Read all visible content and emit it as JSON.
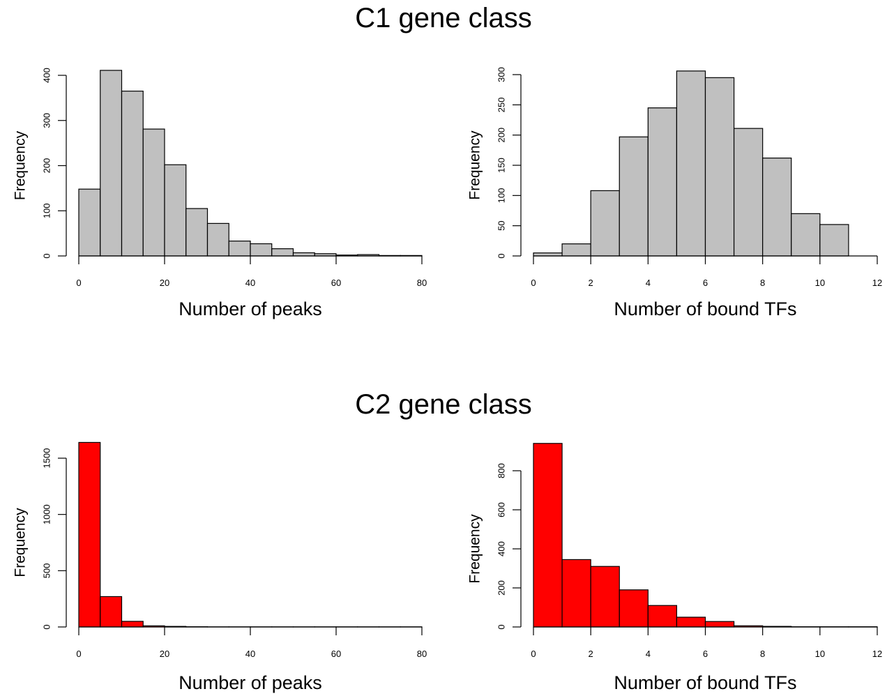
{
  "sections": [
    {
      "title": "C1 gene class"
    },
    {
      "title": "C2 gene class"
    }
  ],
  "colors": {
    "c1_fill": "#c0c0c0",
    "c2_fill": "#ff0000",
    "stroke": "#000000"
  },
  "chart_data": [
    {
      "type": "bar",
      "title": "",
      "xlabel": "Number of peaks",
      "ylabel": "Frequency",
      "bin_edges": [
        0,
        5,
        10,
        15,
        20,
        25,
        30,
        35,
        40,
        45,
        50,
        55,
        60,
        65,
        70,
        75,
        80
      ],
      "values": [
        148,
        411,
        365,
        281,
        202,
        105,
        72,
        33,
        27,
        16,
        7,
        5,
        2,
        3,
        1,
        1
      ],
      "xlim": [
        0,
        80
      ],
      "xticks": [
        0,
        20,
        40,
        60,
        80
      ],
      "ylim": [
        0,
        400
      ],
      "yticks": [
        0,
        100,
        200,
        300,
        400
      ],
      "fill": "#c0c0c0"
    },
    {
      "type": "bar",
      "title": "",
      "xlabel": "Number of bound TFs",
      "ylabel": "Frequency",
      "bin_edges": [
        0,
        1,
        2,
        3,
        4,
        5,
        6,
        7,
        8,
        9,
        10,
        11,
        12
      ],
      "values": [
        5,
        20,
        108,
        197,
        245,
        306,
        295,
        211,
        162,
        70,
        52,
        0
      ],
      "xlim": [
        0,
        12
      ],
      "xticks": [
        0,
        2,
        4,
        6,
        8,
        10,
        12
      ],
      "ylim": [
        0,
        300
      ],
      "yticks": [
        0,
        50,
        100,
        150,
        200,
        250,
        300
      ],
      "fill": "#c0c0c0"
    },
    {
      "type": "bar",
      "title": "",
      "xlabel": "Number of peaks",
      "ylabel": "Frequency",
      "bin_edges": [
        0,
        5,
        10,
        15,
        20,
        25,
        30,
        35,
        40,
        45,
        50,
        55,
        60,
        65,
        70,
        75,
        80
      ],
      "values": [
        1640,
        270,
        50,
        10,
        5,
        2,
        1,
        1,
        1,
        1,
        1,
        1,
        1,
        1,
        1,
        1
      ],
      "xlim": [
        0,
        80
      ],
      "xticks": [
        0,
        20,
        40,
        60,
        80
      ],
      "ylim": [
        0,
        1500
      ],
      "yticks": [
        0,
        500,
        1000,
        1500
      ],
      "fill": "#ff0000"
    },
    {
      "type": "bar",
      "title": "",
      "xlabel": "Number of bound TFs",
      "ylabel": "Frequency",
      "bin_edges": [
        0,
        1,
        2,
        3,
        4,
        5,
        6,
        7,
        8,
        9,
        10,
        11,
        12
      ],
      "values": [
        940,
        345,
        310,
        190,
        110,
        50,
        28,
        6,
        3,
        1,
        1,
        1
      ],
      "xlim": [
        0,
        12
      ],
      "xticks": [
        0,
        2,
        4,
        6,
        8,
        10,
        12
      ],
      "ylim": [
        0,
        800
      ],
      "yticks": [
        0,
        200,
        400,
        600,
        800
      ],
      "fill": "#ff0000"
    }
  ]
}
